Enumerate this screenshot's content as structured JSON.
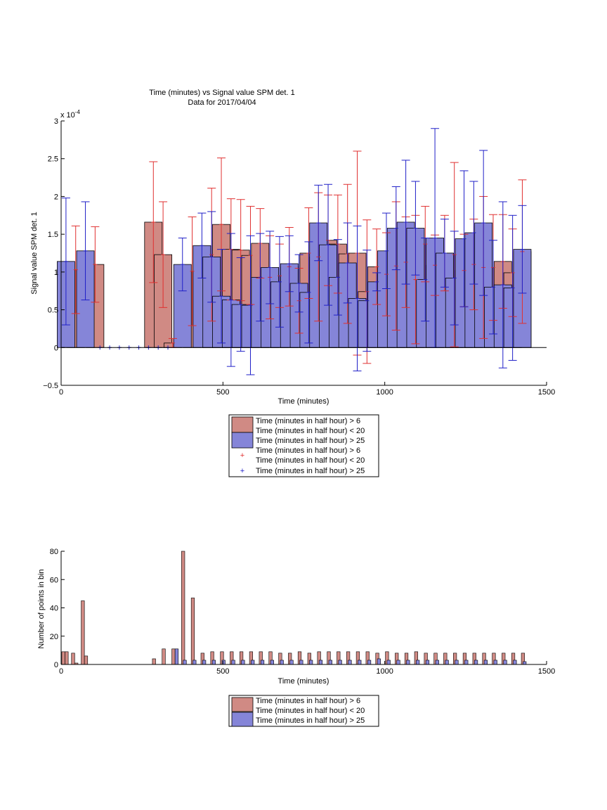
{
  "colors": {
    "red_fill": "#d08a84",
    "red_line": "#e03030",
    "blue_fill": "#8585d8",
    "blue_line": "#2020c8"
  },
  "chart_data": [
    {
      "type": "bar",
      "title": "Time (minutes) vs Signal value SPM det. 1",
      "subtitle": "Data for 2017/04/04",
      "xlabel": "Time (minutes)",
      "ylabel": "Signal value SPM det. 1",
      "exponent_label": "x 10",
      "exponent_power": "-4",
      "xlim": [
        0,
        1500
      ],
      "ylim": [
        -0.5,
        3
      ],
      "xticks": [
        "0",
        "500",
        "1000",
        "1500"
      ],
      "yticks": [
        "−0.5",
        "0",
        "0.5",
        "1",
        "1.5",
        "2",
        "2.5",
        "3"
      ],
      "legend_placement": "below",
      "legend": [
        {
          "label1": "Time (minutes in half hour) > 6",
          "label2": "Time (minutes in half hour) < 20"
        },
        {
          "label1": "Time (minutes in half hour) > 25"
        },
        {
          "label1": "Time (minutes in half hour) > 6",
          "label2": "Time (minutes in half hour) < 20"
        },
        {
          "label1": "Time (minutes in half hour) > 25"
        }
      ],
      "series": [
        {
          "x": [
            45,
            105,
            285,
            315,
            345,
            405,
            465,
            495,
            525,
            555,
            585,
            615,
            645,
            675,
            705,
            735,
            765,
            795,
            825,
            855,
            885,
            915,
            945,
            975,
            1005,
            1035,
            1065,
            1095,
            1125,
            1155,
            1185,
            1215,
            1245,
            1275,
            1305,
            1335,
            1365,
            1395,
            1425
          ],
          "y": [
            1.03,
            1.1,
            1.66,
            1.23,
            0.06,
            1.01,
            1.23,
            1.63,
            1.3,
            1.29,
            1.22,
            1.38,
            0.93,
            0.95,
            1.07,
            0.62,
            1.25,
            1.2,
            1.42,
            1.37,
            1.24,
            1.25,
            0.74,
            1.07,
            0.97,
            1.08,
            1.13,
            0.9,
            1.37,
            1.09,
            1.25,
            1.23,
            1.02,
            1.1,
            1.06,
            1.06,
            1.14,
            0.99,
            1.27
          ],
          "err": [
            0.58,
            0.5,
            0.8,
            0.7,
            0.06,
            0.72,
            0.88,
            0.88,
            0.67,
            0.67,
            0.65,
            0.46,
            0.55,
            0.42,
            0.52,
            0.43,
            0.6,
            0.85,
            0.6,
            0.65,
            0.92,
            1.35,
            0.95,
            0.5,
            0.55,
            0.85,
            0.6,
            0.85,
            0.5,
            0.4,
            0.5,
            1.22,
            0.48,
            0.6,
            0.94,
            0.7,
            0.62,
            0.58,
            0.95
          ]
        },
        {
          "x": [
            15,
            75,
            120,
            150,
            180,
            210,
            240,
            270,
            300,
            330,
            375,
            435,
            465,
            495,
            525,
            555,
            585,
            615,
            645,
            675,
            705,
            735,
            765,
            795,
            825,
            855,
            885,
            915,
            945,
            975,
            1005,
            1035,
            1065,
            1095,
            1125,
            1155,
            1185,
            1215,
            1245,
            1275,
            1305,
            1335,
            1365,
            1395,
            1425
          ],
          "y": [
            1.14,
            1.28,
            0,
            0,
            0,
            0,
            0,
            0,
            0,
            0,
            1.1,
            1.35,
            1.2,
            0.68,
            0.63,
            0.57,
            0.56,
            0.93,
            1.06,
            0.87,
            1.11,
            0.85,
            0.73,
            1.65,
            1.36,
            0.93,
            1.12,
            0.65,
            0.62,
            0.87,
            1.28,
            1.58,
            1.66,
            1.58,
            0.9,
            1.45,
            1.25,
            0.92,
            1.44,
            1.52,
            1.65,
            0.8,
            0.83,
            0.79,
            1.3
          ],
          "err": [
            0.84,
            0.65,
            0,
            0,
            0,
            0,
            0,
            0,
            0,
            0,
            0.35,
            0.43,
            0.6,
            0.62,
            0.88,
            0.62,
            0.92,
            0.58,
            0.48,
            0.6,
            0.37,
            0.38,
            0.67,
            0.5,
            0.8,
            0.5,
            0.53,
            0.96,
            0.67,
            0.12,
            0.5,
            0.55,
            0.82,
            0.62,
            0.55,
            1.45,
            0.45,
            0.62,
            0.9,
            0.68,
            0.96,
            0.62,
            1.1,
            0.96,
            0.58
          ]
        }
      ]
    },
    {
      "type": "bar",
      "xlabel": "Time (minutes)",
      "ylabel": "Number of points in bin",
      "xlim": [
        0,
        1500
      ],
      "ylim": [
        0,
        80
      ],
      "xticks": [
        "0",
        "500",
        "1000",
        "1500"
      ],
      "yticks": [
        "0",
        "20",
        "40",
        "60",
        "80"
      ],
      "legend_placement": "below",
      "legend": [
        {
          "label1": "Time (minutes in half hour) > 6",
          "label2": "Time (minutes in half hour) < 20"
        },
        {
          "label1": "Time (minutes in half hour) > 25"
        }
      ],
      "series": [
        {
          "x": [
            2,
            12,
            32,
            42,
            62,
            72,
            282,
            312,
            342,
            372,
            402,
            432,
            462,
            492,
            522,
            552,
            582,
            612,
            642,
            672,
            702,
            732,
            762,
            792,
            822,
            852,
            882,
            912,
            942,
            972,
            1002,
            1032,
            1062,
            1092,
            1122,
            1152,
            1182,
            1212,
            1242,
            1272,
            1302,
            1332,
            1362,
            1392,
            1422
          ],
          "y": [
            9,
            9,
            8,
            1,
            45,
            6,
            4,
            11,
            11,
            80,
            47,
            8,
            9,
            9,
            9,
            9,
            9,
            9,
            9,
            8,
            8,
            9,
            8,
            9,
            9,
            9,
            9,
            9,
            9,
            8,
            9,
            8,
            8,
            9,
            8,
            8,
            8,
            8,
            8,
            8,
            8,
            8,
            8,
            8,
            8
          ]
        },
        {
          "x": [
            352,
            377,
            407,
            437,
            467,
            497,
            527,
            557,
            587,
            617,
            647,
            677,
            707,
            737,
            767,
            797,
            827,
            857,
            887,
            917,
            947,
            977,
            1007,
            1037,
            1067,
            1097,
            1127,
            1157,
            1187,
            1217,
            1247,
            1277,
            1307,
            1337,
            1367,
            1397,
            1427
          ],
          "y": [
            11,
            3,
            3,
            3,
            3,
            3,
            3,
            3,
            3,
            3,
            3,
            3,
            3,
            3,
            3,
            3,
            3,
            3,
            3,
            3,
            3,
            4,
            3,
            3,
            3,
            3,
            3,
            3,
            3,
            3,
            3,
            3,
            3,
            3,
            3,
            3,
            2
          ]
        }
      ]
    }
  ]
}
